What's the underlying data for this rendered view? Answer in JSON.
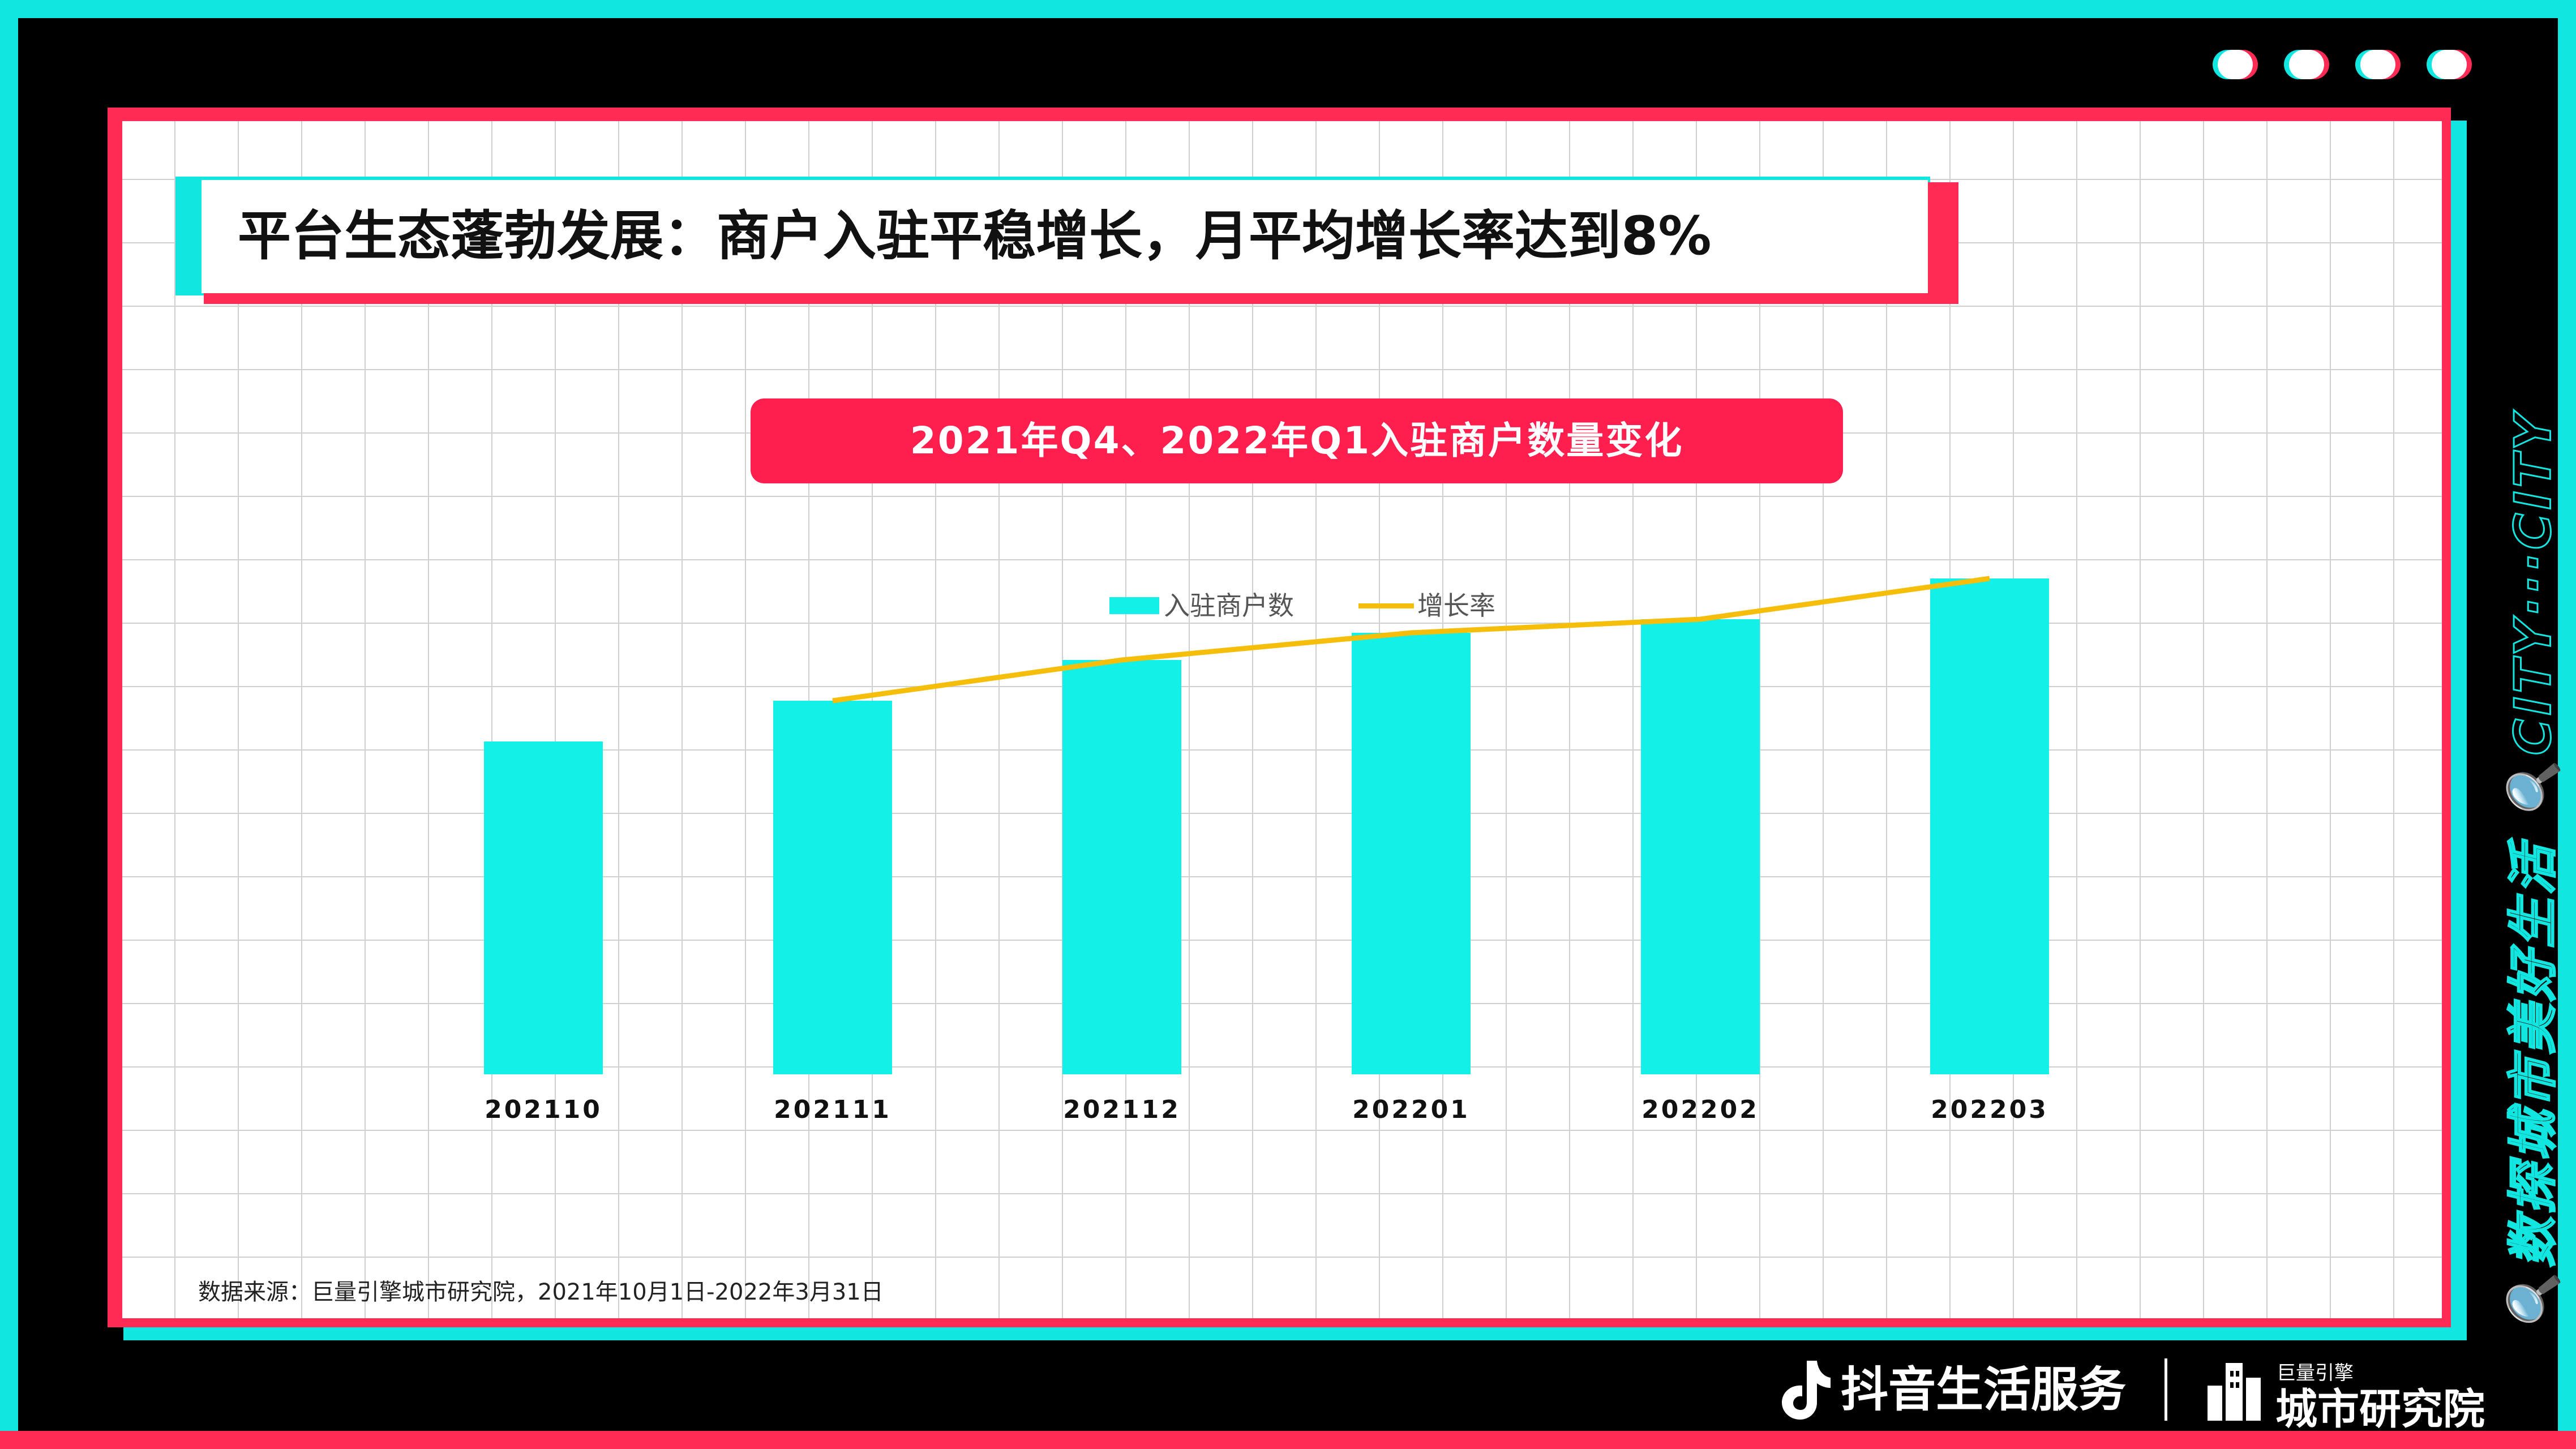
{
  "title": "平台生态蓬勃发展：商户入驻平稳增长，月平均增长率达到8%",
  "chart_title": "2021年Q4、2022年Q1入驻商户数量变化",
  "legend": {
    "bars": "入驻商户数",
    "line": "增长率"
  },
  "source": "数据来源：巨量引擎城市研究院，2021年10月1日-2022年3月31日",
  "side_text": "🔍数探城市美好生活 🔍CITY···CITY",
  "footer": {
    "brand": "抖音生活服务",
    "small": "巨量引擎",
    "institute": "城市研究院"
  },
  "colors": {
    "cyan": "#12e6e0",
    "red": "#fe2c55",
    "bar": "#12f0e8",
    "line": "#f5be0b"
  },
  "icons": [
    "tiktok-note-icon",
    "city-building-icon",
    "search-icon"
  ],
  "chart_data": {
    "type": "bar",
    "title": "2021年Q4、2022年Q1入驻商户数量变化",
    "categories": [
      "202110",
      "202111",
      "202112",
      "202201",
      "202202",
      "202203"
    ],
    "series": [
      {
        "name": "入驻商户数",
        "type": "bar",
        "values": [
          49,
          55,
          61,
          65,
          67,
          73
        ]
      },
      {
        "name": "增长率",
        "type": "line",
        "values": [
          null,
          55,
          61,
          65,
          67,
          73
        ]
      }
    ],
    "ylim": [
      0,
      100
    ],
    "axis_values_shown": false,
    "grid": false,
    "legend_position": "top-center"
  }
}
